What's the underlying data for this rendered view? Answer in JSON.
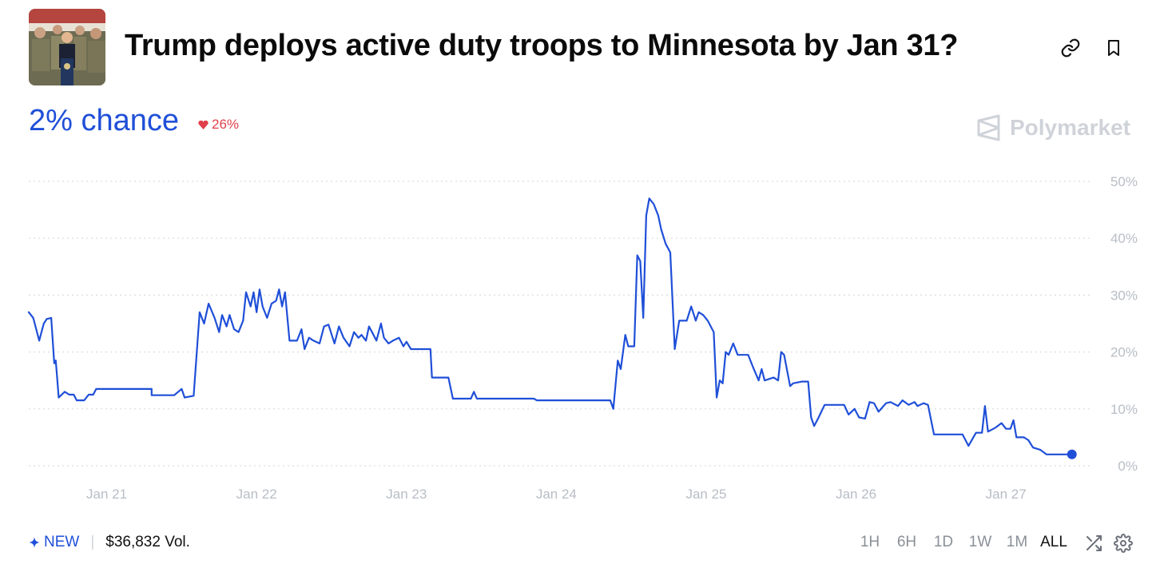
{
  "market": {
    "title": "Trump deploys active duty troops to Minnesota by Jan 31?",
    "chance_label": "2% chance",
    "change_label": "26%",
    "change_direction": "down",
    "brand": "Polymarket"
  },
  "header": {
    "link_icon": "link-icon",
    "bookmark_icon": "bookmark-icon"
  },
  "footer": {
    "new_label": "NEW",
    "volume_label": "$36,832 Vol.",
    "ranges": [
      "1H",
      "6H",
      "1D",
      "1W",
      "1M",
      "ALL"
    ],
    "active_range": "ALL"
  },
  "colors": {
    "accent": "#1f4fd8",
    "negative": "#e0404a",
    "grid": "#d9dce1",
    "muted": "#b8bdc5"
  },
  "chart_data": {
    "type": "line",
    "x_unit": "days (Jan, fractional)",
    "xlim": [
      20.48,
      27.5
    ],
    "ylim": [
      0,
      50
    ],
    "y_ticks": [
      0,
      10,
      20,
      30,
      40,
      50
    ],
    "y_tick_labels": [
      "0%",
      "10%",
      "20%",
      "30%",
      "40%",
      "50%"
    ],
    "x_ticks": [
      21,
      22,
      23,
      24,
      25,
      26,
      27
    ],
    "x_tick_labels": [
      "Jan 21",
      "Jan 22",
      "Jan 23",
      "Jan 24",
      "Jan 25",
      "Jan 26",
      "Jan 27"
    ],
    "grid": true,
    "legend": "none",
    "series": [
      {
        "color": "#1f4fd8",
        "points": [
          [
            20.48,
            27
          ],
          [
            20.51,
            26
          ],
          [
            20.55,
            22
          ],
          [
            20.58,
            25
          ],
          [
            20.6,
            25.8
          ],
          [
            20.63,
            26
          ],
          [
            20.65,
            18
          ],
          [
            20.66,
            18.5
          ],
          [
            20.68,
            12
          ],
          [
            20.72,
            13
          ],
          [
            20.75,
            12.5
          ],
          [
            20.78,
            12.5
          ],
          [
            20.8,
            11.5
          ],
          [
            20.85,
            11.5
          ],
          [
            20.88,
            12.5
          ],
          [
            20.91,
            12.5
          ],
          [
            20.93,
            13.5
          ],
          [
            21.3,
            13.5
          ],
          [
            21.3,
            12.4
          ],
          [
            21.45,
            12.4
          ],
          [
            21.5,
            13.5
          ],
          [
            21.52,
            12
          ],
          [
            21.58,
            12.3
          ],
          [
            21.62,
            27
          ],
          [
            21.65,
            25
          ],
          [
            21.68,
            28.5
          ],
          [
            21.72,
            26
          ],
          [
            21.75,
            23.5
          ],
          [
            21.77,
            26.5
          ],
          [
            21.8,
            24.5
          ],
          [
            21.82,
            26.5
          ],
          [
            21.85,
            24
          ],
          [
            21.88,
            23.5
          ],
          [
            21.91,
            25.5
          ],
          [
            21.93,
            30.5
          ],
          [
            21.96,
            28
          ],
          [
            21.98,
            30.5
          ],
          [
            22.0,
            27
          ],
          [
            22.02,
            31
          ],
          [
            22.04,
            28
          ],
          [
            22.07,
            26
          ],
          [
            22.1,
            28.5
          ],
          [
            22.13,
            29
          ],
          [
            22.15,
            31
          ],
          [
            22.17,
            28
          ],
          [
            22.19,
            30.5
          ],
          [
            22.22,
            22
          ],
          [
            22.27,
            22
          ],
          [
            22.3,
            24
          ],
          [
            22.32,
            20.5
          ],
          [
            22.35,
            22.5
          ],
          [
            22.38,
            22
          ],
          [
            22.42,
            21.5
          ],
          [
            22.45,
            24.5
          ],
          [
            22.48,
            24.8
          ],
          [
            22.52,
            21.5
          ],
          [
            22.55,
            24.5
          ],
          [
            22.58,
            22.5
          ],
          [
            22.62,
            21
          ],
          [
            22.65,
            23.5
          ],
          [
            22.68,
            22.5
          ],
          [
            22.7,
            23
          ],
          [
            22.73,
            22
          ],
          [
            22.75,
            24.5
          ],
          [
            22.78,
            23
          ],
          [
            22.8,
            22
          ],
          [
            22.83,
            25
          ],
          [
            22.85,
            22.5
          ],
          [
            22.88,
            21.5
          ],
          [
            22.91,
            22
          ],
          [
            22.95,
            22.5
          ],
          [
            22.98,
            21
          ],
          [
            23.0,
            21.8
          ],
          [
            23.03,
            20.5
          ],
          [
            23.16,
            20.5
          ],
          [
            23.17,
            15.5
          ],
          [
            23.28,
            15.5
          ],
          [
            23.31,
            11.8
          ],
          [
            23.43,
            11.8
          ],
          [
            23.45,
            13
          ],
          [
            23.47,
            11.8
          ],
          [
            23.85,
            11.8
          ],
          [
            23.87,
            11.5
          ],
          [
            24.36,
            11.5
          ],
          [
            24.38,
            10
          ],
          [
            24.41,
            18.5
          ],
          [
            24.43,
            17
          ],
          [
            24.46,
            23
          ],
          [
            24.48,
            21
          ],
          [
            24.52,
            21
          ],
          [
            24.54,
            37
          ],
          [
            24.56,
            36
          ],
          [
            24.58,
            26
          ],
          [
            24.6,
            44
          ],
          [
            24.62,
            47
          ],
          [
            24.65,
            46
          ],
          [
            24.68,
            44
          ],
          [
            24.7,
            41.5
          ],
          [
            24.73,
            39
          ],
          [
            24.76,
            37.5
          ],
          [
            24.79,
            20.5
          ],
          [
            24.82,
            25.5
          ],
          [
            24.87,
            25.5
          ],
          [
            24.9,
            28
          ],
          [
            24.93,
            25.5
          ],
          [
            24.95,
            27
          ],
          [
            24.98,
            26.5
          ],
          [
            25.01,
            25.5
          ],
          [
            25.05,
            23.5
          ],
          [
            25.07,
            12
          ],
          [
            25.09,
            15
          ],
          [
            25.11,
            14.5
          ],
          [
            25.13,
            20
          ],
          [
            25.15,
            19.5
          ],
          [
            25.18,
            21.5
          ],
          [
            25.21,
            19.5
          ],
          [
            25.28,
            19.5
          ],
          [
            25.31,
            17.5
          ],
          [
            25.35,
            15
          ],
          [
            25.37,
            17
          ],
          [
            25.39,
            15
          ],
          [
            25.45,
            15.5
          ],
          [
            25.48,
            15
          ],
          [
            25.5,
            20
          ],
          [
            25.52,
            19.5
          ],
          [
            25.56,
            14
          ],
          [
            25.58,
            14.5
          ],
          [
            25.64,
            14.8
          ],
          [
            25.68,
            14.8
          ],
          [
            25.7,
            8.5
          ],
          [
            25.72,
            7
          ],
          [
            25.75,
            8.5
          ],
          [
            25.79,
            10.7
          ],
          [
            25.92,
            10.7
          ],
          [
            25.95,
            9
          ],
          [
            25.99,
            10
          ],
          [
            26.02,
            8.5
          ],
          [
            26.06,
            8.3
          ],
          [
            26.09,
            11.2
          ],
          [
            26.12,
            11
          ],
          [
            26.15,
            9.5
          ],
          [
            26.2,
            11
          ],
          [
            26.23,
            11.2
          ],
          [
            26.28,
            10.5
          ],
          [
            26.31,
            11.5
          ],
          [
            26.35,
            10.7
          ],
          [
            26.39,
            11.2
          ],
          [
            26.41,
            10.5
          ],
          [
            26.45,
            11
          ],
          [
            26.48,
            10.7
          ],
          [
            26.52,
            5.5
          ],
          [
            26.71,
            5.5
          ],
          [
            26.75,
            3.5
          ],
          [
            26.8,
            5.8
          ],
          [
            26.84,
            5.8
          ],
          [
            26.86,
            10.5
          ],
          [
            26.88,
            6
          ],
          [
            26.93,
            6.7
          ],
          [
            26.97,
            7.5
          ],
          [
            27.0,
            6.5
          ],
          [
            27.03,
            6.5
          ],
          [
            27.05,
            8
          ],
          [
            27.07,
            5
          ],
          [
            27.12,
            5
          ],
          [
            27.15,
            4.5
          ],
          [
            27.18,
            3.2
          ],
          [
            27.23,
            2.8
          ],
          [
            27.27,
            2
          ],
          [
            27.4,
            2
          ],
          [
            27.44,
            2
          ]
        ]
      }
    ],
    "last_point": [
      27.44,
      2
    ]
  }
}
